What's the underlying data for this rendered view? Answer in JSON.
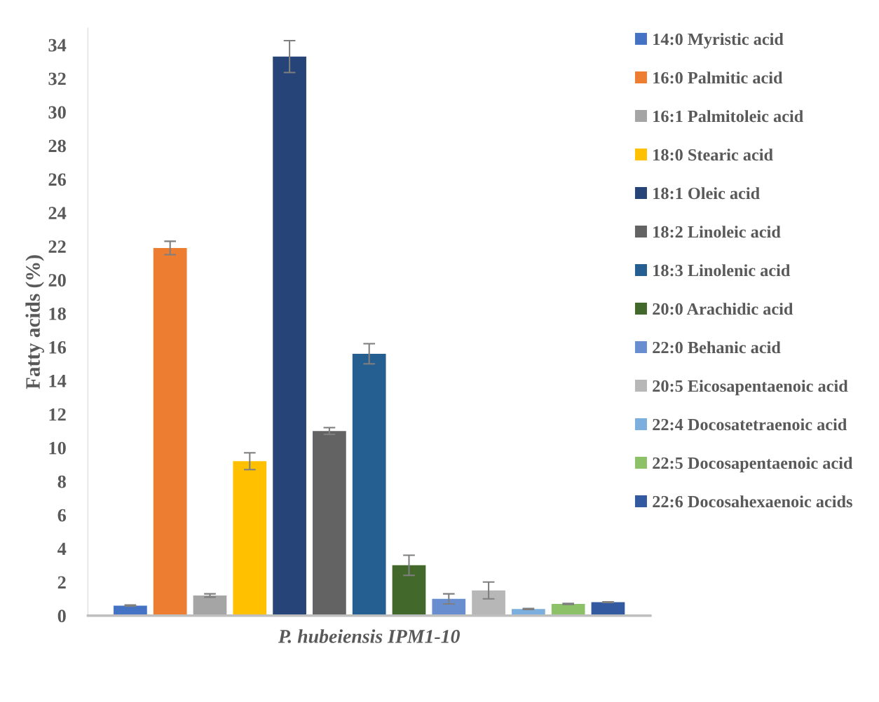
{
  "chart_data": {
    "type": "bar",
    "ylabel": "Fatty acids (%)",
    "categories": [
      "P. hubeiensis IPM1-10"
    ],
    "ylim": [
      0,
      35
    ],
    "yticks": [
      0,
      2,
      4,
      6,
      8,
      10,
      12,
      14,
      16,
      18,
      20,
      22,
      24,
      26,
      28,
      30,
      32,
      34
    ],
    "grid": false,
    "legend": "right",
    "series": [
      {
        "name": "14:0 Myristic acid",
        "color": "#4472c4",
        "values": [
          0.6
        ],
        "errors": [
          0.03
        ]
      },
      {
        "name": "16:0 Palmitic acid",
        "color": "#ed7d31",
        "values": [
          21.9
        ],
        "errors": [
          0.4
        ]
      },
      {
        "name": "16:1 Palmitoleic acid",
        "color": "#a5a5a5",
        "values": [
          1.2
        ],
        "errors": [
          0.1
        ]
      },
      {
        "name": "18:0 Stearic acid",
        "color": "#ffc000",
        "values": [
          9.2
        ],
        "errors": [
          0.5
        ]
      },
      {
        "name": "18:1 Oleic acid",
        "color": "#264478",
        "values": [
          33.3
        ],
        "errors": [
          0.95
        ]
      },
      {
        "name": "18:2 Linoleic acid",
        "color": "#636363",
        "values": [
          11.0
        ],
        "errors": [
          0.2
        ]
      },
      {
        "name": "18:3 Linolenic acid",
        "color": "#255e91",
        "values": [
          15.6
        ],
        "errors": [
          0.6
        ]
      },
      {
        "name": "20:0 Arachidic acid",
        "color": "#43682b",
        "values": [
          3.0
        ],
        "errors": [
          0.6
        ]
      },
      {
        "name": "22:0 Behanic acid",
        "color": "#698ed0",
        "values": [
          1.0
        ],
        "errors": [
          0.3
        ]
      },
      {
        "name": "20:5 Eicosapentaenoic acid",
        "color": "#b7b7b7",
        "values": [
          1.5
        ],
        "errors": [
          0.5
        ]
      },
      {
        "name": "22:4 Docosatetraenoic acid",
        "color": "#7cafdd",
        "values": [
          0.4
        ],
        "errors": [
          0.03
        ]
      },
      {
        "name": "22:5 Docosapentaenoic acid",
        "color": "#8cc168",
        "values": [
          0.7
        ],
        "errors": [
          0.03
        ]
      },
      {
        "name": "22:6 Docosahexaenoic acids",
        "color": "#335aa1",
        "values": [
          0.8
        ],
        "errors": [
          0.02
        ]
      }
    ]
  }
}
